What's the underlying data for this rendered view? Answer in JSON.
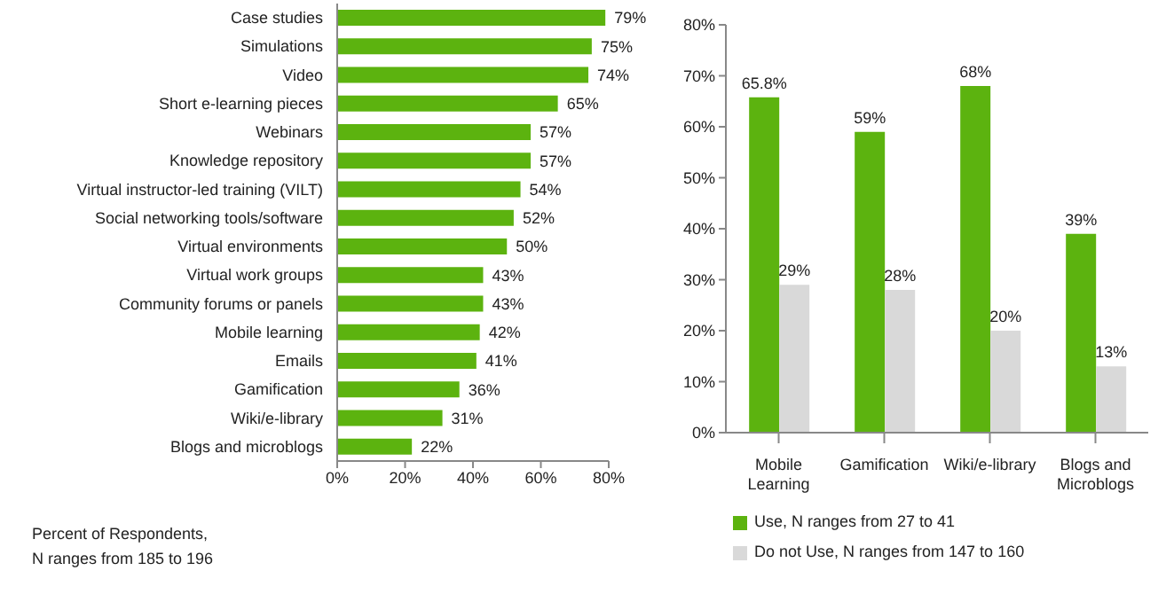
{
  "chart_data": [
    {
      "type": "bar",
      "orientation": "horizontal",
      "categories": [
        "Case studies",
        "Simulations",
        "Video",
        "Short e-learning pieces",
        "Webinars",
        "Knowledge repository",
        "Virtual instructor-led training (VILT)",
        "Social networking tools/software",
        "Virtual environments",
        "Virtual work groups",
        "Community forums or panels",
        "Mobile learning",
        "Emails",
        "Gamification",
        "Wiki/e-library",
        "Blogs and microblogs"
      ],
      "series": [
        {
          "color": "#5cb30f",
          "values": [
            79,
            75,
            74,
            65,
            57,
            57,
            54,
            52,
            50,
            43,
            43,
            42,
            41,
            36,
            31,
            22
          ],
          "value_labels": [
            "79%",
            "75%",
            "74%",
            "65%",
            "57%",
            "57%",
            "54%",
            "52%",
            "50%",
            "43%",
            "43%",
            "42%",
            "41%",
            "36%",
            "31%",
            "22%"
          ]
        }
      ],
      "xlim": [
        0,
        80
      ],
      "xticks": [
        {
          "value": 0,
          "label": "0%"
        },
        {
          "value": 20,
          "label": "20%"
        },
        {
          "value": 40,
          "label": "40%"
        },
        {
          "value": 60,
          "label": "60%"
        },
        {
          "value": 80,
          "label": "80%"
        }
      ],
      "grid": false,
      "legend": false,
      "annotations": [
        "Percent of Respondents,\nN ranges from 185 to 196"
      ]
    },
    {
      "type": "bar",
      "categories": [
        "Mobile Learning",
        "Gamification",
        "Wiki/e-library",
        "Blogs and Microblogs"
      ],
      "series": [
        {
          "name": "Use, N ranges from 27 to 41",
          "color": "#5cb30f",
          "values": [
            65.8,
            59,
            68,
            39
          ],
          "value_labels": [
            "65.8%",
            "59%",
            "68%",
            "39%"
          ]
        },
        {
          "name": "Do not Use, N ranges from 147 to 160",
          "color": "#d9d9d9",
          "values": [
            29,
            28,
            20,
            13
          ],
          "value_labels": [
            "29%",
            "28%",
            "20%",
            "13%"
          ]
        }
      ],
      "ylim": [
        0,
        80
      ],
      "yticks": [
        {
          "value": 0,
          "label": "0%"
        },
        {
          "value": 10,
          "label": "10%"
        },
        {
          "value": 20,
          "label": "20%"
        },
        {
          "value": 30,
          "label": "30%"
        },
        {
          "value": 40,
          "label": "40%"
        },
        {
          "value": 50,
          "label": "50%"
        },
        {
          "value": 60,
          "label": "60%"
        },
        {
          "value": 70,
          "label": "70%"
        },
        {
          "value": 80,
          "label": "80%"
        }
      ],
      "grid": false,
      "legend": "bottom"
    }
  ]
}
